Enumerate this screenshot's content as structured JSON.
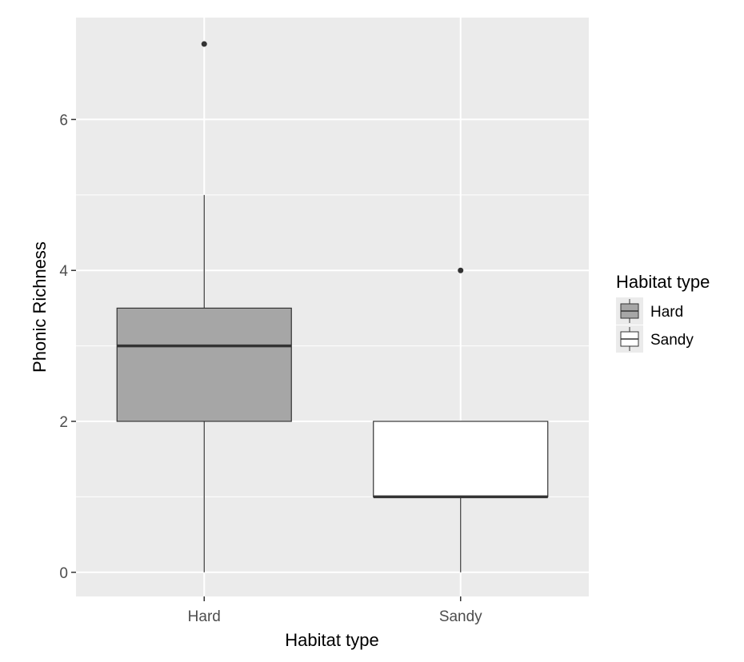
{
  "chart_data": {
    "type": "boxplot",
    "title": "",
    "xlabel": "Habitat type",
    "ylabel": "Phonic Richness",
    "categories": [
      "Hard",
      "Sandy"
    ],
    "yticks": [
      "0",
      "2",
      "4",
      "6"
    ],
    "ylim": [
      -0.32,
      7.35
    ],
    "grid": true,
    "boxes": [
      {
        "category": "Hard",
        "min": 0,
        "q1": 2,
        "median": 3,
        "q3": 3.5,
        "max": 5,
        "outliers": [
          7
        ],
        "fill": "#a6a6a6"
      },
      {
        "category": "Sandy",
        "min": 0,
        "q1": 1,
        "median": 1,
        "q3": 2,
        "max": 2,
        "outliers": [
          4
        ],
        "fill": "#ffffff"
      }
    ],
    "legend": {
      "title": "Habitat type",
      "placement": "right",
      "entries": [
        {
          "label": "Hard",
          "fill": "#a6a6a6"
        },
        {
          "label": "Sandy",
          "fill": "#ffffff"
        }
      ]
    },
    "colors": {
      "panel": "#ebebeb",
      "grid": "#ffffff",
      "line": "#333333"
    }
  }
}
